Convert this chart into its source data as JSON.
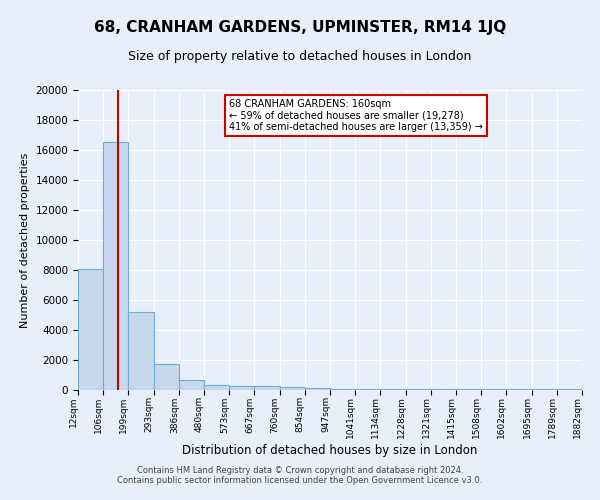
{
  "title": "68, CRANHAM GARDENS, UPMINSTER, RM14 1JQ",
  "subtitle": "Size of property relative to detached houses in London",
  "xlabel": "Distribution of detached houses by size in London",
  "ylabel": "Number of detached properties",
  "bin_edges": [
    0,
    1,
    2,
    3,
    4,
    5,
    6,
    7,
    8,
    9,
    10,
    11,
    12,
    13,
    14,
    15,
    16,
    17,
    18,
    19,
    20
  ],
  "bin_labels": [
    "12sqm",
    "106sqm",
    "199sqm",
    "293sqm",
    "386sqm",
    "480sqm",
    "573sqm",
    "667sqm",
    "760sqm",
    "854sqm",
    "947sqm",
    "1041sqm",
    "1134sqm",
    "1228sqm",
    "1321sqm",
    "1415sqm",
    "1508sqm",
    "1602sqm",
    "1695sqm",
    "1789sqm",
    "1882sqm"
  ],
  "bar_heights": [
    8100,
    16500,
    5200,
    1750,
    700,
    350,
    300,
    250,
    200,
    150,
    100,
    100,
    80,
    80,
    60,
    60,
    50,
    50,
    40,
    40
  ],
  "bar_color": "#c5d8ee",
  "bar_edge_color": "#6baed6",
  "red_line_x": 1.58,
  "annotation_text_line1": "68 CRANHAM GARDENS: 160sqm",
  "annotation_text_line2": "← 59% of detached houses are smaller (19,278)",
  "annotation_text_line3": "41% of semi-detached houses are larger (13,359) →",
  "annotation_box_facecolor": "#ffffff",
  "annotation_box_edgecolor": "#cc0000",
  "ylim": [
    0,
    20000
  ],
  "yticks": [
    0,
    2000,
    4000,
    6000,
    8000,
    10000,
    12000,
    14000,
    16000,
    18000,
    20000
  ],
  "footer_line1": "Contains HM Land Registry data © Crown copyright and database right 2024.",
  "footer_line2": "Contains public sector information licensed under the Open Government Licence v3.0.",
  "background_color": "#e8eff8",
  "plot_background_color": "#e8eff8",
  "title_fontsize": 11,
  "subtitle_fontsize": 9
}
